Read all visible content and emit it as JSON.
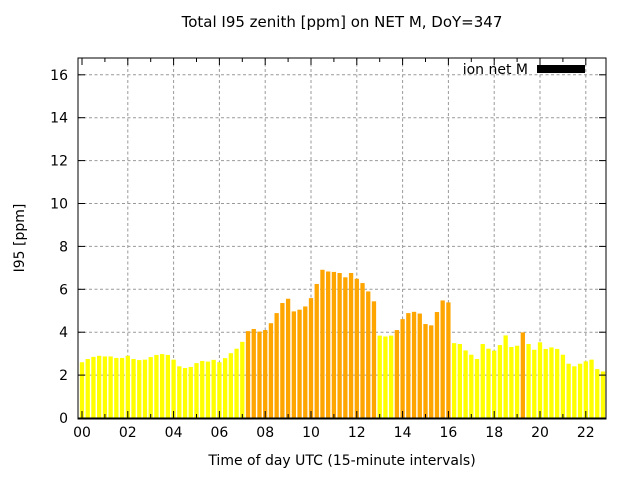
{
  "chart_data": {
    "type": "bar",
    "title": "Total I95 zenith [ppm] on NET M, DoY=347",
    "xlabel": "Time of day UTC (15-minute intervals)",
    "ylabel": "I95 [ppm]",
    "legend": {
      "label": "ion net M",
      "swatch_color": "#000000",
      "position": "top-right-inside"
    },
    "grid": true,
    "grid_color": "#999999",
    "frame_color": "#000000",
    "background_color": "#ffffff",
    "bar_interval_minutes": 15,
    "x_tick_labels": [
      "00",
      "02",
      "04",
      "06",
      "08",
      "10",
      "12",
      "14",
      "16",
      "18",
      "20",
      "22"
    ],
    "x_tick_hours": [
      0,
      2,
      4,
      6,
      8,
      10,
      12,
      14,
      16,
      18,
      20,
      22
    ],
    "y_tick_labels": [
      "0",
      "2",
      "4",
      "6",
      "8",
      "10",
      "12",
      "14",
      "16"
    ],
    "y_ticks": [
      0,
      2,
      4,
      6,
      8,
      10,
      12,
      14,
      16
    ],
    "ylim": [
      0,
      16.8
    ],
    "xlim_hours": [
      -0.2,
      22.9
    ],
    "bar_colors": {
      "y": "#ffff00",
      "o": "#ffa500"
    },
    "bar_color_names": {
      "y": "yellow",
      "o": "orange"
    },
    "bars": [
      [
        "00:00",
        2.6,
        "y"
      ],
      [
        "00:15",
        2.75,
        "y"
      ],
      [
        "00:30",
        2.85,
        "y"
      ],
      [
        "00:45",
        2.9,
        "y"
      ],
      [
        "01:00",
        2.87,
        "y"
      ],
      [
        "01:15",
        2.87,
        "y"
      ],
      [
        "01:30",
        2.8,
        "y"
      ],
      [
        "01:45",
        2.8,
        "y"
      ],
      [
        "02:00",
        2.9,
        "y"
      ],
      [
        "02:15",
        2.75,
        "y"
      ],
      [
        "02:30",
        2.7,
        "y"
      ],
      [
        "02:45",
        2.72,
        "y"
      ],
      [
        "03:00",
        2.84,
        "y"
      ],
      [
        "03:15",
        2.94,
        "y"
      ],
      [
        "03:30",
        2.98,
        "y"
      ],
      [
        "03:45",
        2.94,
        "y"
      ],
      [
        "04:00",
        2.72,
        "y"
      ],
      [
        "04:15",
        2.41,
        "y"
      ],
      [
        "04:30",
        2.33,
        "y"
      ],
      [
        "04:45",
        2.38,
        "y"
      ],
      [
        "05:00",
        2.56,
        "y"
      ],
      [
        "05:15",
        2.66,
        "y"
      ],
      [
        "05:30",
        2.63,
        "y"
      ],
      [
        "05:45",
        2.71,
        "y"
      ],
      [
        "06:00",
        2.6,
        "y"
      ],
      [
        "06:15",
        2.79,
        "y"
      ],
      [
        "06:30",
        3.02,
        "y"
      ],
      [
        "06:45",
        3.23,
        "y"
      ],
      [
        "07:00",
        3.55,
        "y"
      ],
      [
        "07:15",
        4.05,
        "o"
      ],
      [
        "07:30",
        4.15,
        "o"
      ],
      [
        "07:45",
        4.03,
        "o"
      ],
      [
        "08:00",
        4.1,
        "o"
      ],
      [
        "08:15",
        4.42,
        "o"
      ],
      [
        "08:30",
        4.89,
        "o"
      ],
      [
        "08:45",
        5.36,
        "o"
      ],
      [
        "09:00",
        5.56,
        "o"
      ],
      [
        "09:15",
        4.97,
        "o"
      ],
      [
        "09:30",
        5.05,
        "o"
      ],
      [
        "09:45",
        5.2,
        "o"
      ],
      [
        "10:00",
        5.59,
        "o"
      ],
      [
        "10:15",
        6.25,
        "o"
      ],
      [
        "10:30",
        6.91,
        "o"
      ],
      [
        "10:45",
        6.83,
        "o"
      ],
      [
        "11:00",
        6.81,
        "o"
      ],
      [
        "11:15",
        6.76,
        "o"
      ],
      [
        "11:30",
        6.56,
        "o"
      ],
      [
        "11:45",
        6.76,
        "o"
      ],
      [
        "12:00",
        6.49,
        "o"
      ],
      [
        "12:15",
        6.29,
        "o"
      ],
      [
        "12:30",
        5.9,
        "o"
      ],
      [
        "12:45",
        5.44,
        "o"
      ],
      [
        "13:00",
        3.84,
        "y"
      ],
      [
        "13:15",
        3.8,
        "y"
      ],
      [
        "13:30",
        3.84,
        "y"
      ],
      [
        "13:45",
        4.1,
        "o"
      ],
      [
        "14:00",
        4.61,
        "o"
      ],
      [
        "14:15",
        4.89,
        "o"
      ],
      [
        "14:30",
        4.95,
        "o"
      ],
      [
        "14:45",
        4.87,
        "o"
      ],
      [
        "15:00",
        4.38,
        "o"
      ],
      [
        "15:15",
        4.32,
        "o"
      ],
      [
        "15:30",
        4.94,
        "o"
      ],
      [
        "15:45",
        5.48,
        "o"
      ],
      [
        "16:00",
        5.39,
        "o"
      ],
      [
        "16:15",
        3.49,
        "y"
      ],
      [
        "16:30",
        3.45,
        "y"
      ],
      [
        "16:45",
        3.15,
        "y"
      ],
      [
        "17:00",
        2.95,
        "y"
      ],
      [
        "17:15",
        2.75,
        "y"
      ],
      [
        "17:30",
        3.45,
        "y"
      ],
      [
        "17:45",
        3.23,
        "y"
      ],
      [
        "18:00",
        3.14,
        "y"
      ],
      [
        "18:15",
        3.4,
        "y"
      ],
      [
        "18:30",
        3.85,
        "y"
      ],
      [
        "18:45",
        3.31,
        "y"
      ],
      [
        "19:00",
        3.37,
        "y"
      ],
      [
        "19:15",
        3.99,
        "o"
      ],
      [
        "19:30",
        3.45,
        "y"
      ],
      [
        "19:45",
        3.18,
        "y"
      ],
      [
        "20:00",
        3.53,
        "y"
      ],
      [
        "20:15",
        3.22,
        "y"
      ],
      [
        "20:30",
        3.29,
        "y"
      ],
      [
        "20:45",
        3.22,
        "y"
      ],
      [
        "21:00",
        2.95,
        "y"
      ],
      [
        "21:15",
        2.53,
        "y"
      ],
      [
        "21:30",
        2.41,
        "y"
      ],
      [
        "21:45",
        2.53,
        "y"
      ],
      [
        "22:00",
        2.64,
        "y"
      ],
      [
        "22:15",
        2.72,
        "y"
      ],
      [
        "22:30",
        2.28,
        "y"
      ],
      [
        "22:45",
        2.17,
        "y"
      ]
    ]
  }
}
